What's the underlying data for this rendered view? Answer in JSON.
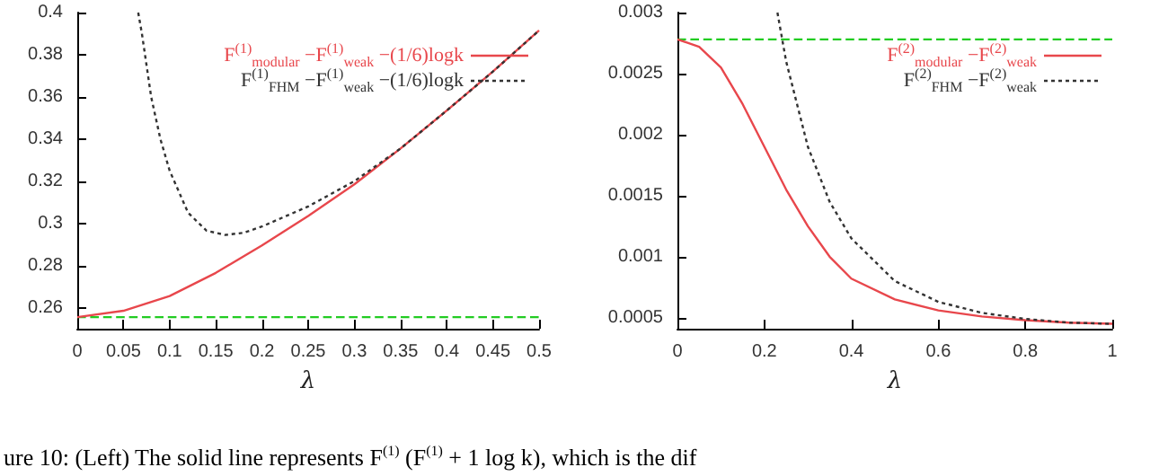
{
  "chart_data": [
    {
      "type": "line",
      "xlabel": "λ",
      "x": [
        0,
        0.05,
        0.1,
        0.15,
        0.2,
        0.25,
        0.3,
        0.35,
        0.4,
        0.45,
        0.5
      ],
      "xlim": [
        0,
        0.5
      ],
      "xticks": [
        0,
        0.05,
        0.1,
        0.15,
        0.2,
        0.25,
        0.3,
        0.35,
        0.4,
        0.45,
        0.5
      ],
      "ylim": [
        0.25,
        0.4
      ],
      "yticks": [
        0.26,
        0.28,
        0.3,
        0.32,
        0.34,
        0.36,
        0.38,
        0.4
      ],
      "grid": false,
      "legend": "top right",
      "marker": "none",
      "series": [
        {
          "name": "F$^{(1)}$$_{modular}$ −F$^{(1)}$$_{weak}$ −(1/6)logk",
          "color": "#e8474c",
          "line_style": "solid",
          "values": [
            0.2555,
            0.2585,
            0.2655,
            0.2765,
            0.2895,
            0.3035,
            0.3185,
            0.3355,
            0.3535,
            0.372,
            0.3915
          ]
        },
        {
          "name": "F$^{(1)}$$_{FHM}$ −F$^{(1)}$$_{weak}$ −(1/6)logk",
          "color": "#333333",
          "line_style": "dotted",
          "x": [
            0.066,
            0.07,
            0.08,
            0.09,
            0.1,
            0.12,
            0.14,
            0.16,
            0.18,
            0.2,
            0.25,
            0.3,
            0.35,
            0.4,
            0.45,
            0.5
          ],
          "values": [
            0.4,
            0.39,
            0.36,
            0.34,
            0.325,
            0.305,
            0.2965,
            0.2945,
            0.2955,
            0.2985,
            0.308,
            0.32,
            0.3355,
            0.3535,
            0.372,
            0.3915
          ]
        }
      ],
      "ref_lines": [
        {
          "axis": "y",
          "value": 0.2555,
          "color": "#22cc22",
          "line_style": "dashed"
        }
      ],
      "annotations": [
        "ure 10: (Left) The solid line represents F$^{(1)}$ (F$^{(1)}$ + 1 log k), which is the dif"
      ]
    },
    {
      "type": "line",
      "xlabel": "λ",
      "x": [
        0,
        0.05,
        0.1,
        0.15,
        0.2,
        0.25,
        0.3,
        0.35,
        0.4,
        0.5,
        0.6,
        0.7,
        0.8,
        0.9,
        1
      ],
      "xlim": [
        0,
        1
      ],
      "xticks": [
        0,
        0.2,
        0.4,
        0.6,
        0.8,
        1
      ],
      "ylim": [
        0.00041,
        0.003
      ],
      "yticks": [
        0.0005,
        0.001,
        0.0015,
        0.002,
        0.0025,
        0.003
      ],
      "grid": false,
      "legend": "top right",
      "marker": "none",
      "series": [
        {
          "name": "F$^{(2)}$$_{modular}$ −F$^{(2)}$$_{weak}$",
          "color": "#e8474c",
          "line_style": "solid",
          "values": [
            0.00278,
            0.00272,
            0.00255,
            0.00225,
            0.0019,
            0.00155,
            0.00125,
            0.001,
            0.00082,
            0.00065,
            0.00056,
            0.00051,
            0.00048,
            0.00046,
            0.00045
          ]
        },
        {
          "name": "F$^{(2)}$$_{FHM}$ −F$^{(2)}$$_{weak}$",
          "color": "#333333",
          "line_style": "dotted",
          "x": [
            0.23,
            0.25,
            0.3,
            0.35,
            0.4,
            0.5,
            0.6,
            0.7,
            0.8,
            0.9,
            1
          ],
          "values": [
            0.003,
            0.0026,
            0.0019,
            0.00145,
            0.00115,
            0.0008,
            0.00063,
            0.00054,
            0.00049,
            0.00046,
            0.00045
          ]
        }
      ],
      "ref_lines": [
        {
          "axis": "y",
          "value": 0.00278,
          "color": "#22cc22",
          "line_style": "dashed"
        }
      ]
    }
  ]
}
